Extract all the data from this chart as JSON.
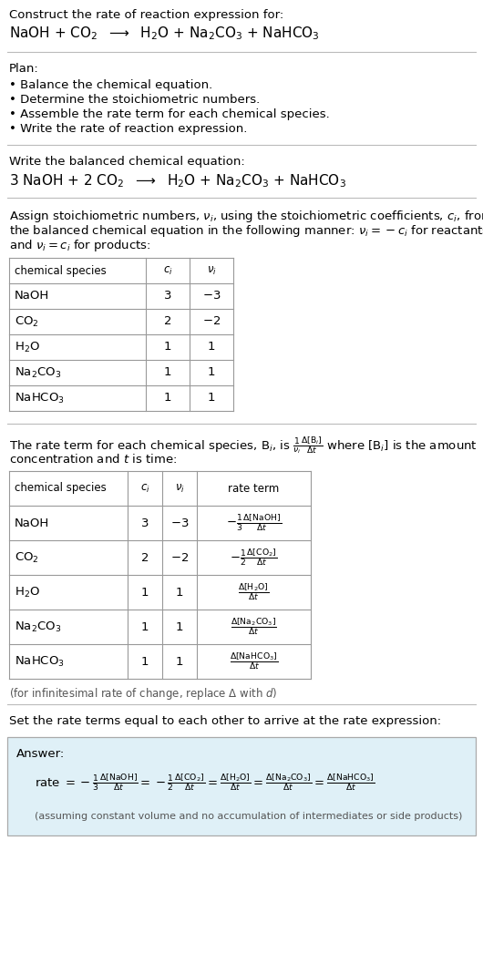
{
  "bg_color": "#ffffff",
  "text_color": "#000000",
  "gray_text": "#555555",
  "light_blue_bg": "#dff0f7",
  "table_border_color": "#999999",
  "title_text": "Construct the rate of reaction expression for:",
  "unbalanced_eq": "NaOH + CO$_2$  $\\longrightarrow$  H$_2$O + Na$_2$CO$_3$ + NaHCO$_3$",
  "plan_header": "Plan:",
  "plan_items": [
    "• Balance the chemical equation.",
    "• Determine the stoichiometric numbers.",
    "• Assemble the rate term for each chemical species.",
    "• Write the rate of reaction expression."
  ],
  "balanced_header": "Write the balanced chemical equation:",
  "balanced_eq": "3 NaOH + 2 CO$_2$  $\\longrightarrow$  H$_2$O + Na$_2$CO$_3$ + NaHCO$_3$",
  "stoich_intro_lines": [
    "Assign stoichiometric numbers, $\\nu_i$, using the stoichiometric coefficients, $c_i$, from",
    "the balanced chemical equation in the following manner: $\\nu_i = -c_i$ for reactants",
    "and $\\nu_i = c_i$ for products:"
  ],
  "table1_headers": [
    "chemical species",
    "$c_i$",
    "$\\nu_i$"
  ],
  "table1_rows": [
    [
      "NaOH",
      "3",
      "$-3$"
    ],
    [
      "CO$_2$",
      "2",
      "$-2$"
    ],
    [
      "H$_2$O",
      "1",
      "1"
    ],
    [
      "Na$_2$CO$_3$",
      "1",
      "1"
    ],
    [
      "NaHCO$_3$",
      "1",
      "1"
    ]
  ],
  "rate_term_intro_line1": "The rate term for each chemical species, B$_i$, is $\\frac{1}{\\nu_i}\\frac{\\Delta[\\mathrm{B}_i]}{\\Delta t}$ where [B$_i$] is the amount",
  "rate_term_intro_line2": "concentration and $t$ is time:",
  "table2_headers": [
    "chemical species",
    "$c_i$",
    "$\\nu_i$",
    "rate term"
  ],
  "table2_col_species": [
    "NaOH",
    "CO$_2$",
    "H$_2$O",
    "Na$_2$CO$_3$",
    "NaHCO$_3$"
  ],
  "table2_col_ci": [
    "3",
    "2",
    "1",
    "1",
    "1"
  ],
  "table2_col_vi": [
    "$-3$",
    "$-2$",
    "1",
    "1",
    "1"
  ],
  "table2_rate_terms": [
    "$-\\frac{1}{3}\\frac{\\Delta[\\mathrm{NaOH}]}{\\Delta t}$",
    "$-\\frac{1}{2}\\frac{\\Delta[\\mathrm{CO_2}]}{\\Delta t}$",
    "$\\frac{\\Delta[\\mathrm{H_2O}]}{\\Delta t}$",
    "$\\frac{\\Delta[\\mathrm{Na_2CO_3}]}{\\Delta t}$",
    "$\\frac{\\Delta[\\mathrm{NaHCO_3}]}{\\Delta t}$"
  ],
  "infinitesimal_note": "(for infinitesimal rate of change, replace Δ with $d$)",
  "set_equal_text": "Set the rate terms equal to each other to arrive at the rate expression:",
  "answer_label": "Answer:",
  "rate_expression_parts": [
    "rate $= -\\frac{1}{3}\\frac{\\Delta[\\mathrm{NaOH}]}{\\Delta t} = -\\frac{1}{2}\\frac{\\Delta[\\mathrm{CO_2}]}{\\Delta t} = \\frac{\\Delta[\\mathrm{H_2O}]}{\\Delta t} = \\frac{\\Delta[\\mathrm{Na_2CO_3}]}{\\Delta t} = \\frac{\\Delta[\\mathrm{NaHCO_3}]}{\\Delta t}$"
  ],
  "assumption_note": "(assuming constant volume and no accumulation of intermediates or side products)"
}
